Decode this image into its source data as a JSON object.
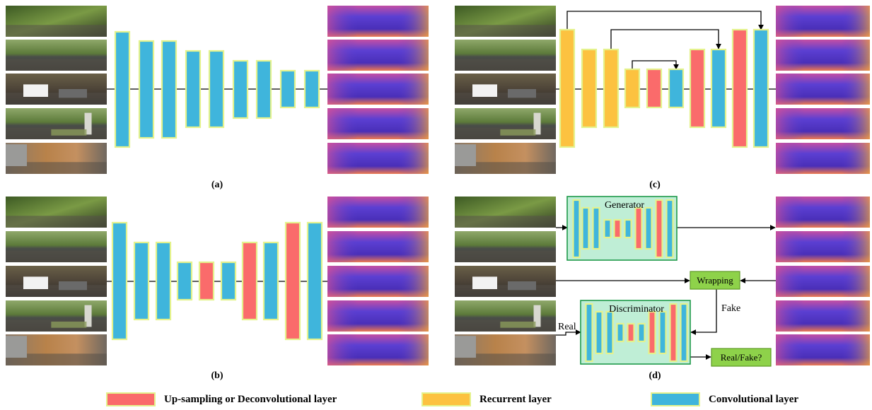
{
  "colors": {
    "conv": "#3fb5dc",
    "upsample": "#fa6b6b",
    "recurrent": "#fcc240",
    "layer_border": "#e4f28c",
    "box_border": "#1f9a4a",
    "box_fill": "#bfeed6",
    "tag_fill": "#8ed24a",
    "tag_border": "#5e9a25"
  },
  "captions": {
    "a": "(a)",
    "b": "(b)",
    "c": "(c)",
    "d": "(d)"
  },
  "diagram_d": {
    "generator": "Generator",
    "discriminator": "Discriminator",
    "wrapping": "Wrapping",
    "fake": "Fake",
    "real": "Real",
    "real_fake": "Real/Fake?"
  },
  "legend": {
    "upsample": "Up-sampling or Deconvolutional layer",
    "recurrent": "Recurrent layer",
    "conv": "Convolutional layer"
  }
}
